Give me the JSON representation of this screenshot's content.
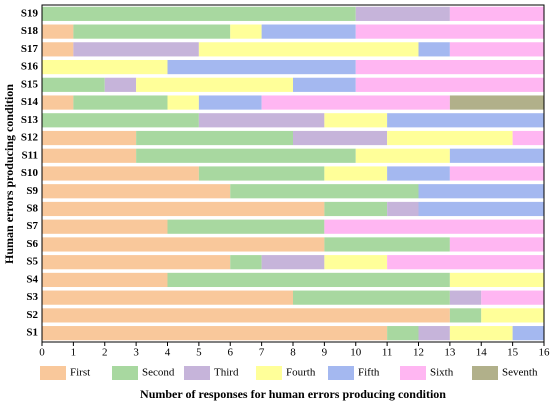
{
  "chart_data": {
    "type": "stacked_barh",
    "xlabel": "Number of responses for human errors producing condition",
    "ylabel": "Human errors producing condition",
    "categories": [
      "S1",
      "S2",
      "S3",
      "S4",
      "S5",
      "S6",
      "S7",
      "S8",
      "S9",
      "S10",
      "S11",
      "S12",
      "S13",
      "S14",
      "S15",
      "S16",
      "S17",
      "S18",
      "S19"
    ],
    "series": [
      {
        "name": "First",
        "color": "#f9c89b",
        "values": [
          11,
          13,
          8,
          4,
          6,
          9,
          4,
          9,
          6,
          5,
          3,
          3,
          0,
          1,
          0,
          0,
          1,
          1,
          0
        ]
      },
      {
        "name": "Second",
        "color": "#a8d8a0",
        "values": [
          1,
          1,
          5,
          9,
          1,
          4,
          5,
          2,
          6,
          4,
          7,
          5,
          5,
          3,
          2,
          0,
          0,
          5,
          10
        ]
      },
      {
        "name": "Third",
        "color": "#c6b4da",
        "values": [
          1,
          0,
          1,
          0,
          2,
          0,
          0,
          1,
          0,
          0,
          0,
          3,
          4,
          0,
          1,
          0,
          4,
          0,
          3
        ]
      },
      {
        "name": "Fourth",
        "color": "#ffff99",
        "values": [
          2,
          2,
          0,
          3,
          2,
          0,
          0,
          0,
          0,
          2,
          3,
          4,
          2,
          1,
          5,
          4,
          7,
          1,
          0
        ]
      },
      {
        "name": "Fifth",
        "color": "#a4b8f0",
        "values": [
          1,
          0,
          0,
          0,
          0,
          0,
          0,
          4,
          4,
          2,
          3,
          0,
          5,
          2,
          2,
          6,
          1,
          3,
          0
        ]
      },
      {
        "name": "Sixth",
        "color": "#ffb6f2",
        "values": [
          0,
          0,
          2,
          0,
          5,
          3,
          7,
          0,
          0,
          3,
          0,
          1,
          0,
          6,
          6,
          6,
          3,
          6,
          3
        ]
      },
      {
        "name": "Seventh",
        "color": "#b1b08a",
        "values": [
          0,
          0,
          0,
          0,
          0,
          0,
          0,
          0,
          0,
          0,
          0,
          0,
          0,
          3,
          0,
          0,
          0,
          0,
          0
        ]
      }
    ],
    "xlim": [
      0,
      16
    ],
    "xticks": [
      0,
      1,
      2,
      3,
      4,
      5,
      6,
      7,
      8,
      9,
      10,
      11,
      12,
      13,
      14,
      15,
      16
    ]
  }
}
